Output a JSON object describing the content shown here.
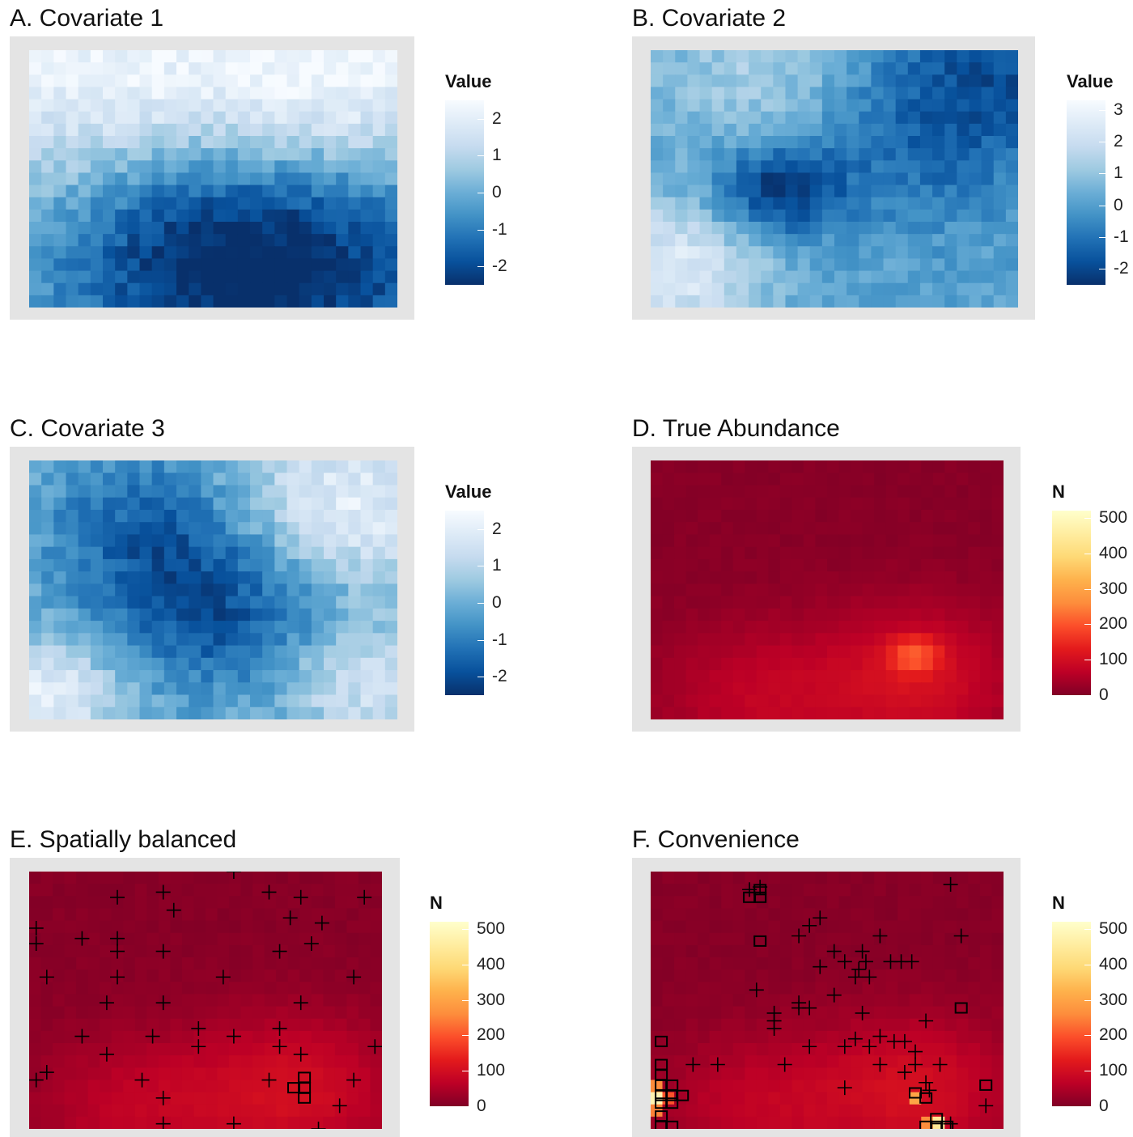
{
  "chart_data": [
    {
      "id": "A",
      "type": "heatmap",
      "title": "A. Covariate 1",
      "legend_title": "Value",
      "legend_ticks": [
        "2",
        "1",
        "0",
        "-1",
        "-2"
      ],
      "scale": "blues",
      "range": [
        -2.5,
        2.5
      ],
      "pattern": {
        "desc": "low values lower-center/right",
        "centers": [
          [
            0.75,
            0.85,
            -2.3,
            0.35
          ],
          [
            0.4,
            0.75,
            -1.6,
            0.3
          ],
          [
            0.15,
            0.1,
            2.0,
            0.35
          ],
          [
            0.85,
            0.1,
            2.2,
            0.3
          ]
        ]
      }
    },
    {
      "id": "B",
      "type": "heatmap",
      "title": "B. Covariate 2",
      "legend_title": "Value",
      "legend_ticks": [
        "3",
        "2",
        "1",
        "0",
        "-1",
        "-2"
      ],
      "scale": "blues",
      "range": [
        -2.5,
        3.3
      ],
      "pattern": {
        "centers": [
          [
            0.35,
            0.55,
            -2.5,
            0.12
          ],
          [
            0.75,
            0.35,
            -1.4,
            0.25
          ],
          [
            0.95,
            0.05,
            -1.5,
            0.2
          ],
          [
            0.05,
            0.85,
            2.4,
            0.18
          ],
          [
            0.3,
            0.1,
            1.2,
            0.2
          ]
        ]
      }
    },
    {
      "id": "C",
      "type": "heatmap",
      "title": "C. Covariate 3",
      "legend_title": "Value",
      "legend_ticks": [
        "2",
        "1",
        "0",
        "-1",
        "-2"
      ],
      "scale": "blues",
      "range": [
        -2.5,
        2.5
      ],
      "pattern": {
        "centers": [
          [
            0.5,
            0.55,
            -2.2,
            0.25
          ],
          [
            0.3,
            0.2,
            -1.2,
            0.2
          ],
          [
            0.85,
            0.2,
            2.0,
            0.22
          ],
          [
            0.05,
            0.9,
            2.0,
            0.15
          ],
          [
            0.9,
            0.85,
            1.5,
            0.15
          ]
        ]
      }
    },
    {
      "id": "D",
      "type": "heatmap",
      "title": "D. True Abundance",
      "legend_title": "N",
      "legend_ticks": [
        "500",
        "400",
        "300",
        "200",
        "100",
        "0"
      ],
      "scale": "ylorrd",
      "range": [
        0,
        520
      ],
      "pattern": {
        "centers": [
          [
            0.75,
            0.85,
            90,
            0.2
          ],
          [
            0.3,
            0.92,
            60,
            0.2
          ],
          [
            0.75,
            0.75,
            130,
            0.05
          ]
        ]
      }
    },
    {
      "id": "E",
      "type": "heatmap",
      "title": "E. Spatially balanced",
      "legend_title": "N",
      "legend_ticks": [
        "500",
        "400",
        "300",
        "200",
        "100",
        "0"
      ],
      "scale": "ylorrd",
      "range": [
        0,
        520
      ],
      "pattern": {
        "centers": [
          [
            0.75,
            0.85,
            90,
            0.2
          ],
          [
            0.3,
            0.92,
            60,
            0.2
          ]
        ]
      },
      "points": [
        [
          0.58,
          0.0
        ],
        [
          0.25,
          0.1
        ],
        [
          0.38,
          0.08
        ],
        [
          0.68,
          0.08
        ],
        [
          0.77,
          0.1
        ],
        [
          0.95,
          0.1
        ],
        [
          0.41,
          0.15
        ],
        [
          0.74,
          0.18
        ],
        [
          0.83,
          0.2
        ],
        [
          0.02,
          0.22
        ],
        [
          0.15,
          0.26
        ],
        [
          0.25,
          0.26
        ],
        [
          0.8,
          0.28
        ],
        [
          0.02,
          0.28
        ],
        [
          0.25,
          0.31
        ],
        [
          0.38,
          0.31
        ],
        [
          0.71,
          0.31
        ],
        [
          0.05,
          0.41
        ],
        [
          0.25,
          0.41
        ],
        [
          0.55,
          0.41
        ],
        [
          0.92,
          0.41
        ],
        [
          0.22,
          0.51
        ],
        [
          0.38,
          0.51
        ],
        [
          0.77,
          0.51
        ],
        [
          0.15,
          0.64
        ],
        [
          0.35,
          0.64
        ],
        [
          0.48,
          0.61
        ],
        [
          0.58,
          0.64
        ],
        [
          0.71,
          0.61
        ],
        [
          0.48,
          0.68
        ],
        [
          0.71,
          0.68
        ],
        [
          0.22,
          0.71
        ],
        [
          0.77,
          0.71
        ],
        [
          0.98,
          0.68
        ],
        [
          0.05,
          0.78
        ],
        [
          0.02,
          0.81
        ],
        [
          0.32,
          0.81
        ],
        [
          0.68,
          0.81
        ],
        [
          0.92,
          0.81
        ],
        [
          0.38,
          0.88
        ],
        [
          0.88,
          0.91
        ],
        [
          0.38,
          0.98
        ],
        [
          0.58,
          0.98
        ],
        [
          0.82,
          1.0
        ]
      ],
      "boxes": [
        [
          0.75,
          0.84
        ],
        [
          0.78,
          0.84
        ],
        [
          0.78,
          0.8
        ],
        [
          0.78,
          0.88
        ]
      ]
    },
    {
      "id": "F",
      "type": "heatmap",
      "title": "F. Convenience",
      "legend_title": "N",
      "legend_ticks": [
        "500",
        "400",
        "300",
        "200",
        "100",
        "0"
      ],
      "scale": "ylorrd",
      "range": [
        0,
        520
      ],
      "pattern": {
        "centers": [
          [
            0.75,
            0.85,
            90,
            0.2
          ],
          [
            0.3,
            0.92,
            60,
            0.2
          ]
        ]
      },
      "points": [
        [
          0.28,
          0.07
        ],
        [
          0.31,
          0.06
        ],
        [
          0.85,
          0.05
        ],
        [
          0.48,
          0.18
        ],
        [
          0.45,
          0.21
        ],
        [
          0.88,
          0.25
        ],
        [
          0.42,
          0.25
        ],
        [
          0.65,
          0.25
        ],
        [
          0.52,
          0.31
        ],
        [
          0.6,
          0.31
        ],
        [
          0.55,
          0.35
        ],
        [
          0.59,
          0.38
        ],
        [
          0.61,
          0.35
        ],
        [
          0.48,
          0.37
        ],
        [
          0.71,
          0.35
        ],
        [
          0.74,
          0.35
        ],
        [
          0.68,
          0.35
        ],
        [
          0.58,
          0.41
        ],
        [
          0.62,
          0.41
        ],
        [
          0.3,
          0.46
        ],
        [
          0.52,
          0.48
        ],
        [
          0.42,
          0.51
        ],
        [
          0.45,
          0.53
        ],
        [
          0.42,
          0.53
        ],
        [
          0.35,
          0.55
        ],
        [
          0.6,
          0.55
        ],
        [
          0.78,
          0.58
        ],
        [
          0.35,
          0.58
        ],
        [
          0.35,
          0.61
        ],
        [
          0.58,
          0.65
        ],
        [
          0.65,
          0.64
        ],
        [
          0.69,
          0.66
        ],
        [
          0.72,
          0.66
        ],
        [
          0.45,
          0.68
        ],
        [
          0.75,
          0.7
        ],
        [
          0.62,
          0.68
        ],
        [
          0.55,
          0.68
        ],
        [
          0.65,
          0.75
        ],
        [
          0.75,
          0.75
        ],
        [
          0.12,
          0.75
        ],
        [
          0.19,
          0.75
        ],
        [
          0.38,
          0.75
        ],
        [
          0.72,
          0.78
        ],
        [
          0.82,
          0.75
        ],
        [
          0.55,
          0.84
        ],
        [
          0.78,
          0.82
        ],
        [
          0.79,
          0.85
        ],
        [
          0.95,
          0.91
        ],
        [
          0.85,
          0.98
        ]
      ],
      "boxes": [
        [
          0.28,
          0.1
        ],
        [
          0.31,
          0.1
        ],
        [
          0.31,
          0.07
        ],
        [
          0.31,
          0.27
        ],
        [
          0.88,
          0.53
        ],
        [
          0.03,
          0.66
        ],
        [
          0.03,
          0.75
        ],
        [
          0.03,
          0.79
        ],
        [
          0.03,
          0.83
        ],
        [
          0.06,
          0.83
        ],
        [
          0.03,
          0.87
        ],
        [
          0.06,
          0.87
        ],
        [
          0.09,
          0.87
        ],
        [
          0.03,
          0.9
        ],
        [
          0.06,
          0.9
        ],
        [
          0.03,
          0.95
        ],
        [
          0.03,
          0.99
        ],
        [
          0.06,
          0.99
        ],
        [
          0.75,
          0.86
        ],
        [
          0.78,
          0.88
        ],
        [
          0.95,
          0.83
        ],
        [
          0.78,
          0.99
        ],
        [
          0.81,
          0.99
        ],
        [
          0.84,
          0.99
        ],
        [
          0.81,
          0.96
        ]
      ],
      "hot": [
        [
          0.03,
          0.87,
          380
        ],
        [
          0.03,
          0.9,
          480
        ],
        [
          0.06,
          0.9,
          320
        ],
        [
          0.06,
          0.87,
          200
        ],
        [
          0.03,
          0.83,
          260
        ],
        [
          0.75,
          0.86,
          300
        ],
        [
          0.81,
          0.96,
          470
        ],
        [
          0.81,
          0.99,
          440
        ],
        [
          0.78,
          0.99,
          260
        ],
        [
          0.03,
          0.95,
          250
        ]
      ]
    }
  ]
}
